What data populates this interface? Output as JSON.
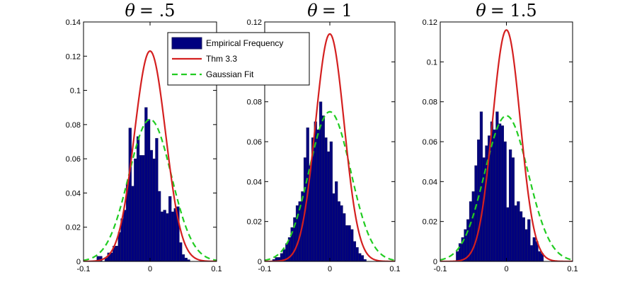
{
  "chart_data": [
    {
      "type": "bar",
      "title_symbol": "θ",
      "title_value": "= .5",
      "xlim": [
        -0.1,
        0.1
      ],
      "ylim": [
        0,
        0.14
      ],
      "xticks": [
        "-0.1",
        "0",
        "0.1"
      ],
      "yticks": [
        "0",
        "0.02",
        "0.04",
        "0.06",
        "0.08",
        "0.1",
        "0.12",
        "0.14"
      ],
      "grid": false,
      "histogram": {
        "name": "Empirical Frequency",
        "bin_start": -0.1,
        "bin_width": 0.004,
        "values": [
          0,
          0,
          0,
          0,
          0,
          0.003,
          0.003,
          0,
          0.002,
          0.005,
          0.005,
          0.009,
          0.009,
          0.017,
          0.025,
          0.03,
          0.045,
          0.078,
          0.044,
          0.06,
          0.073,
          0.062,
          0.062,
          0.09,
          0.083,
          0.065,
          0.06,
          0.072,
          0.041,
          0.029,
          0.03,
          0.028,
          0.038,
          0.029,
          0.031,
          0.032,
          0.011,
          0.004,
          0.002,
          0.001
        ]
      },
      "theory_curve": {
        "name": "Thm 3.3",
        "mean": 0,
        "peak": 0.123,
        "sd": 0.0235
      },
      "gaussian_fit": {
        "name": "Gaussian Fit",
        "mean": 0,
        "peak": 0.083,
        "sd": 0.032
      }
    },
    {
      "type": "bar",
      "title_symbol": "θ",
      "title_value": "= 1",
      "xlim": [
        -0.1,
        0.1
      ],
      "ylim": [
        0,
        0.12
      ],
      "xticks": [
        "-0.1",
        "0",
        "0.1"
      ],
      "yticks": [
        "0",
        "0.02",
        "0.04",
        "0.06",
        "0.08",
        "0.1",
        "0.12"
      ],
      "grid": false,
      "histogram": {
        "name": "Empirical Frequency",
        "bin_start": -0.1,
        "bin_width": 0.004,
        "values": [
          0,
          0,
          0,
          0.001,
          0.002,
          0.002,
          0.004,
          0.006,
          0.009,
          0.012,
          0.017,
          0.022,
          0.028,
          0.03,
          0.035,
          0.052,
          0.067,
          0.048,
          0.062,
          0.07,
          0.066,
          0.08,
          0.073,
          0.062,
          0.055,
          0.06,
          0.034,
          0.04,
          0.03,
          0.028,
          0.024,
          0.018,
          0.018,
          0.016,
          0.01,
          0.007,
          0.004,
          0.003,
          0.001,
          0
        ]
      },
      "theory_curve": {
        "name": "Thm 3.3",
        "mean": 0,
        "peak": 0.114,
        "sd": 0.022
      },
      "gaussian_fit": {
        "name": "Gaussian Fit",
        "mean": 0,
        "peak": 0.075,
        "sd": 0.032
      }
    },
    {
      "type": "bar",
      "title_symbol": "θ",
      "title_value": "= 1.5",
      "xlim": [
        -0.1,
        0.1
      ],
      "ylim": [
        0,
        0.12
      ],
      "xticks": [
        "-0.1",
        "0",
        "0.1"
      ],
      "yticks": [
        "0",
        "0.02",
        "0.04",
        "0.06",
        "0.08",
        "0.1",
        "0.12"
      ],
      "grid": false,
      "histogram": {
        "name": "Empirical Frequency",
        "bin_start": -0.1,
        "bin_width": 0.004,
        "values": [
          0,
          0,
          0,
          0,
          0,
          0,
          0.005,
          0.009,
          0.012,
          0.016,
          0.021,
          0.03,
          0.035,
          0.048,
          0.061,
          0.075,
          0.052,
          0.058,
          0.063,
          0.07,
          0.066,
          0.075,
          0.069,
          0.068,
          0.06,
          0.027,
          0.056,
          0.052,
          0.028,
          0.03,
          0.025,
          0.022,
          0.016,
          0.021,
          0.008,
          0.012,
          0.01,
          0.005,
          0.004,
          0
        ]
      },
      "theory_curve": {
        "name": "Thm 3.3",
        "mean": 0,
        "peak": 0.116,
        "sd": 0.021
      },
      "gaussian_fit": {
        "name": "Gaussian Fit",
        "mean": 0,
        "peak": 0.073,
        "sd": 0.033
      }
    }
  ],
  "legend": {
    "placement": "top, overlapping first and second panels",
    "entries": [
      "Empirical Frequency",
      "Thm 3.3",
      "Gaussian Fit"
    ]
  },
  "colors": {
    "histogram_fill": "#00007f",
    "histogram_edge": "#1a1a5e",
    "theory_curve": "#d42020",
    "gaussian_fit": "#22cc22",
    "axes": "#000000"
  }
}
